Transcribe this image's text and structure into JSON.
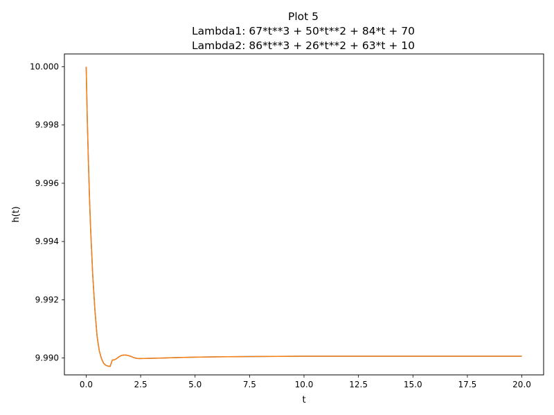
{
  "chart_data": {
    "type": "line",
    "title": "Plot 5",
    "subtitle_lines": [
      "Lambda1: 67*t**3 + 50*t**2 + 84*t + 70",
      "Lambda2: 86*t**3 + 26*t**2 + 63*t + 10"
    ],
    "xlabel": "t",
    "ylabel": "h(t)",
    "xlim": [
      -1.0,
      21.0
    ],
    "ylim": [
      9.98942,
      10.00044
    ],
    "x_ticks": [
      0.0,
      2.5,
      5.0,
      7.5,
      10.0,
      12.5,
      15.0,
      17.5,
      20.0
    ],
    "x_tick_labels": [
      "0.0",
      "2.5",
      "5.0",
      "7.5",
      "10.0",
      "12.5",
      "15.0",
      "17.5",
      "20.0"
    ],
    "y_ticks": [
      9.99,
      9.992,
      9.994,
      9.996,
      9.998,
      10.0
    ],
    "y_tick_labels": [
      "9.990",
      "9.992",
      "9.994",
      "9.996",
      "9.998",
      "10.000"
    ],
    "grid": false,
    "legend": "none",
    "series": [
      {
        "color": "#1f77b4",
        "x": [
          0.0,
          0.05,
          0.1,
          0.15,
          0.2,
          0.3,
          0.4,
          0.5,
          0.6,
          0.7,
          0.8,
          0.9,
          1.0,
          1.1,
          1.2,
          1.3,
          1.4,
          1.5,
          1.6,
          1.7,
          1.8,
          1.9,
          2.0,
          2.1,
          2.2,
          2.3,
          2.4,
          2.5,
          3.0,
          3.5,
          4.0,
          5.0,
          6.0,
          7.5,
          10.0,
          12.5,
          15.0,
          17.5,
          20.0
        ],
        "y": [
          10.0,
          9.9982,
          9.9968,
          9.99555,
          9.9945,
          9.99285,
          9.99165,
          9.99075,
          9.99025,
          9.98998,
          9.98982,
          9.98975,
          9.98972,
          9.98971,
          9.98993,
          9.98994,
          9.98998,
          9.99004,
          9.99008,
          9.9901,
          9.9901,
          9.99009,
          9.99007,
          9.99004,
          9.99001,
          9.98999,
          9.98998,
          9.98998,
          9.98999,
          9.99,
          9.99001,
          9.99003,
          9.99004,
          9.99005,
          9.99006,
          9.99006,
          9.99006,
          9.99006,
          9.99006
        ]
      },
      {
        "color": "#ff7f0e",
        "x": [
          0.0,
          0.05,
          0.1,
          0.15,
          0.2,
          0.3,
          0.4,
          0.5,
          0.6,
          0.7,
          0.8,
          0.9,
          1.0,
          1.1,
          1.2,
          1.3,
          1.4,
          1.5,
          1.6,
          1.7,
          1.8,
          1.9,
          2.0,
          2.1,
          2.2,
          2.3,
          2.4,
          2.5,
          3.0,
          3.5,
          4.0,
          5.0,
          6.0,
          7.5,
          10.0,
          12.5,
          15.0,
          17.5,
          20.0
        ],
        "y": [
          10.0,
          9.9982,
          9.9968,
          9.99555,
          9.9945,
          9.99285,
          9.99165,
          9.99075,
          9.99025,
          9.98998,
          9.98982,
          9.98975,
          9.98972,
          9.98971,
          9.98993,
          9.98994,
          9.98998,
          9.99004,
          9.99008,
          9.9901,
          9.9901,
          9.99009,
          9.99007,
          9.99004,
          9.99001,
          9.98999,
          9.98998,
          9.98998,
          9.98999,
          9.99,
          9.99001,
          9.99003,
          9.99004,
          9.99005,
          9.99006,
          9.99006,
          9.99006,
          9.99006,
          9.99006
        ]
      }
    ]
  }
}
